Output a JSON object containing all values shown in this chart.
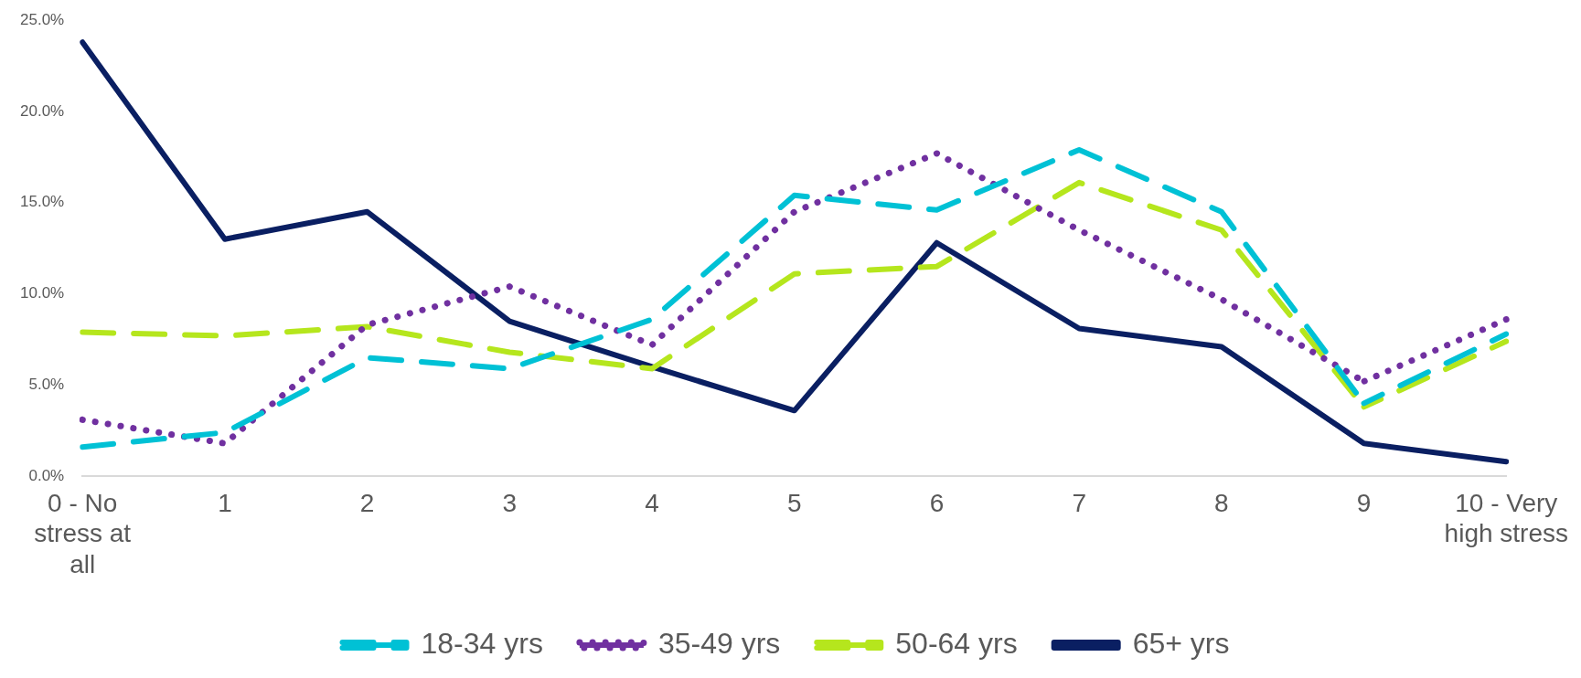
{
  "chart_data": {
    "type": "line",
    "categories": [
      "0 - No stress at all",
      "1",
      "2",
      "3",
      "4",
      "5",
      "6",
      "7",
      "8",
      "9",
      "10 - Very high stress"
    ],
    "series": [
      {
        "name": "18-34 yrs",
        "color": "#00c1d5",
        "line_style": "dashed",
        "values": [
          1.6,
          2.4,
          6.5,
          5.9,
          8.6,
          15.4,
          14.6,
          17.9,
          14.5,
          4.0,
          7.8
        ]
      },
      {
        "name": "35-49 yrs",
        "color": "#7030a0",
        "line_style": "dotted",
        "values": [
          3.1,
          1.8,
          8.3,
          10.4,
          7.2,
          14.5,
          17.7,
          13.5,
          9.7,
          5.2,
          8.6
        ]
      },
      {
        "name": "50-64 yrs",
        "color": "#b5e61d",
        "line_style": "dashed",
        "values": [
          7.9,
          7.7,
          8.2,
          6.8,
          5.9,
          11.1,
          11.5,
          16.1,
          13.5,
          3.8,
          7.4
        ]
      },
      {
        "name": "65+ yrs",
        "color": "#0a1f62",
        "line_style": "solid",
        "values": [
          23.8,
          13.0,
          14.5,
          8.5,
          6.0,
          3.6,
          12.8,
          8.1,
          7.1,
          1.8,
          0.8
        ]
      }
    ],
    "ylim": [
      0,
      25
    ],
    "yticks": [
      {
        "value": 0,
        "label": "0.0%"
      },
      {
        "value": 5,
        "label": "5.0%"
      },
      {
        "value": 10,
        "label": "10.0%"
      },
      {
        "value": 15,
        "label": "15.0%"
      },
      {
        "value": 20,
        "label": "20.0%"
      },
      {
        "value": 25,
        "label": "25.0%"
      }
    ],
    "grid": false,
    "legend": "bottom",
    "marker": "none"
  }
}
